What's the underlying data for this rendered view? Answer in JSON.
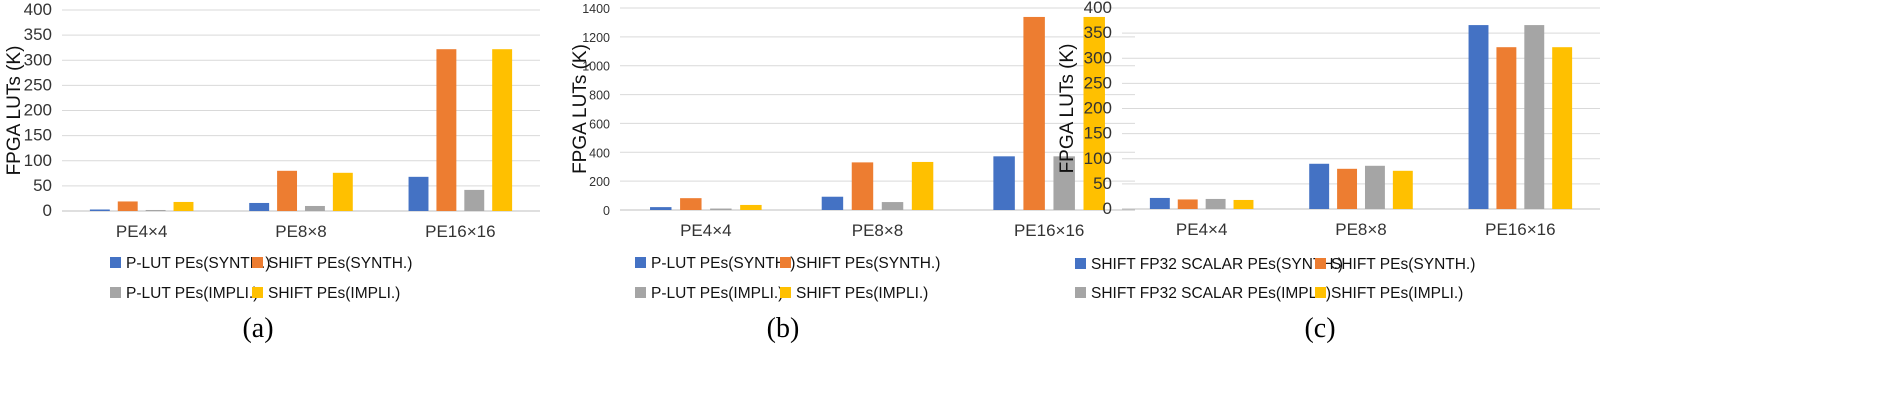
{
  "chart_data": [
    {
      "type": "bar",
      "panel_label": "(a)",
      "ylabel": "FPGA LUTs (K)",
      "ylim": [
        0,
        400
      ],
      "yticks": [
        0,
        50,
        100,
        150,
        200,
        250,
        300,
        350,
        400
      ],
      "categories": [
        "PE4×4",
        "PE8×8",
        "PE16×16"
      ],
      "series": [
        {
          "name": "P-LUT PEs(SYNTH.)",
          "color": "#4472C4",
          "values": [
            3,
            16,
            68
          ]
        },
        {
          "name": "SHIFT PEs(SYNTH.)",
          "color": "#ED7D31",
          "values": [
            19,
            80,
            322
          ]
        },
        {
          "name": "P-LUT PEs(IMPLI.)",
          "color": "#A5A5A5",
          "values": [
            2,
            10,
            42
          ]
        },
        {
          "name": "SHIFT PEs(IMPLI.)",
          "color": "#FFC000",
          "values": [
            18,
            76,
            322
          ]
        }
      ],
      "grid": true,
      "legend_position": "bottom"
    },
    {
      "type": "bar",
      "panel_label": "(b)",
      "ylabel": "FPGA LUTs (K)",
      "ylim": [
        0,
        1400
      ],
      "yticks": [
        0,
        200,
        400,
        600,
        800,
        1000,
        1200,
        1400
      ],
      "categories": [
        "PE4×4",
        "PE8×8",
        "PE16×16"
      ],
      "series": [
        {
          "name": "P-LUT PEs(SYNTH.)",
          "color": "#4472C4",
          "values": [
            20,
            92,
            372
          ]
        },
        {
          "name": "SHIFT PEs(SYNTH.)",
          "color": "#ED7D31",
          "values": [
            82,
            330,
            1338
          ]
        },
        {
          "name": "P-LUT PEs(IMPLI.)",
          "color": "#A5A5A5",
          "values": [
            10,
            55,
            372
          ]
        },
        {
          "name": "SHIFT PEs(IMPLI.)",
          "color": "#FFC000",
          "values": [
            35,
            333,
            1338
          ]
        }
      ],
      "grid": true,
      "legend_position": "bottom"
    },
    {
      "type": "bar",
      "panel_label": "(c)",
      "ylabel": "FPGA LUTs (K)",
      "ylim": [
        0,
        400
      ],
      "yticks": [
        0,
        50,
        100,
        150,
        200,
        250,
        300,
        350,
        400
      ],
      "categories": [
        "PE4×4",
        "PE8×8",
        "PE16×16"
      ],
      "series": [
        {
          "name": "SHIFT FP32 SCALAR PEs(SYNTH.)",
          "color": "#4472C4",
          "values": [
            22,
            90,
            366
          ]
        },
        {
          "name": "SHIFT PEs(SYNTH.)",
          "color": "#ED7D31",
          "values": [
            19,
            80,
            322
          ]
        },
        {
          "name": "SHIFT FP32 SCALAR  PEs(IMPLI.)",
          "color": "#A5A5A5",
          "values": [
            20,
            86,
            366
          ]
        },
        {
          "name": "SHIFT PEs(IMPLI.)",
          "color": "#FFC000",
          "values": [
            18,
            76,
            322
          ]
        }
      ],
      "grid": true,
      "legend_position": "bottom"
    }
  ]
}
